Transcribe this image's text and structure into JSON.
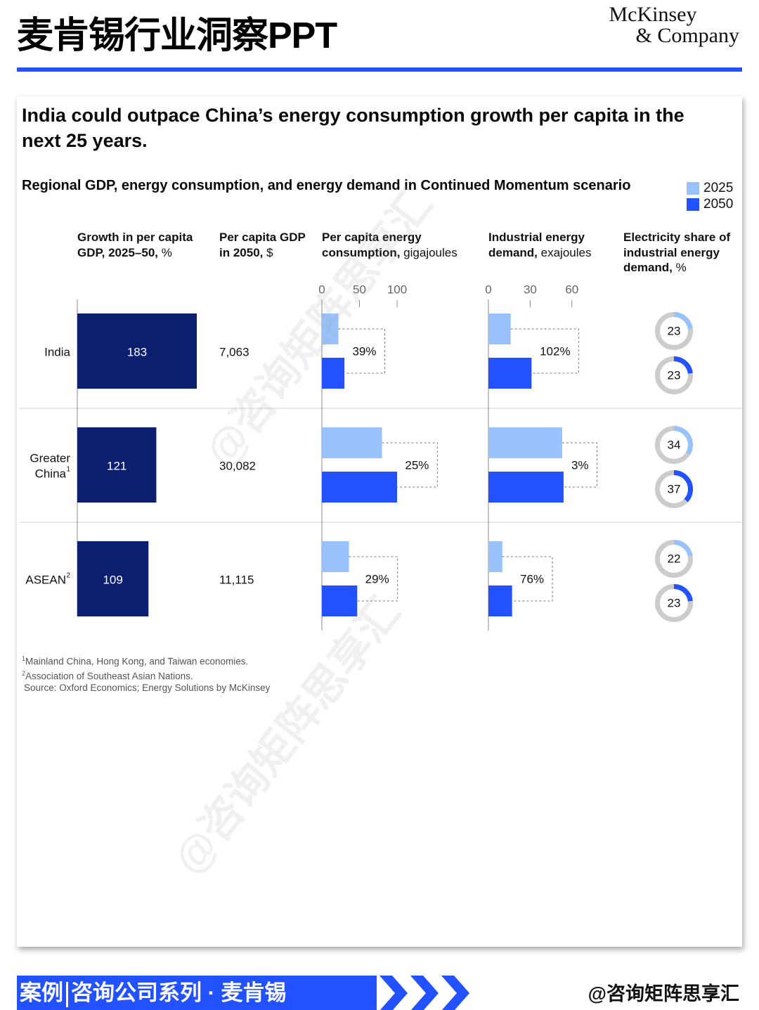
{
  "header": {
    "title": "麦肯锡行业洞察PPT",
    "logo_line1": "McKinsey",
    "logo_line2": "& Company"
  },
  "headline": "India could outpace China’s energy consumption growth per capita in the next 25 years.",
  "subtitle": "Regional GDP, energy consumption, and energy demand in Continued Momentum scenario",
  "legend": {
    "y2025": "2025",
    "y2050": "2050"
  },
  "colors": {
    "navy": "#0c1e6e",
    "light_blue": "#99c2fc",
    "blue": "#2251ff",
    "grey": "#cccccc"
  },
  "columns": {
    "gdp_growth": {
      "bold": "Growth in per capita GDP, 2025–50,",
      "unit": " %"
    },
    "gdp_2050": {
      "bold": "Per capita GDP in 2050,",
      "unit": " $"
    },
    "energy_pc": {
      "bold": "Per capita energy consumption,",
      "unit": " gigajoules"
    },
    "industrial": {
      "bold": "Industrial energy demand,",
      "unit": " exajoules"
    },
    "electricity": {
      "bold": "Electricity share of industrial energy demand,",
      "unit": " %"
    }
  },
  "chart_data": {
    "type": "bar",
    "title": "Regional GDP, energy consumption, and energy demand in Continued Momentum scenario",
    "categories": [
      "India",
      "Greater China",
      "ASEAN"
    ],
    "category_labels": [
      {
        "text": "India",
        "sup": ""
      },
      {
        "text": "Greater China",
        "sup": "1"
      },
      {
        "text": "ASEAN",
        "sup": "2"
      }
    ],
    "gdp_growth_pct": [
      183,
      121,
      109
    ],
    "gdp_per_capita_2050_usd": [
      "7,063",
      "30,082",
      "11,115"
    ],
    "energy_per_capita_gj": {
      "ticks": [
        0,
        50,
        100
      ],
      "series": [
        {
          "name": "2025",
          "values": [
            22,
            80,
            36
          ]
        },
        {
          "name": "2050",
          "values": [
            30,
            100,
            47
          ]
        }
      ],
      "growth_labels": [
        "39%",
        "25%",
        "29%"
      ]
    },
    "industrial_energy_ej": {
      "ticks": [
        0,
        30,
        60
      ],
      "series": [
        {
          "name": "2025",
          "values": [
            16,
            53,
            10
          ]
        },
        {
          "name": "2050",
          "values": [
            31,
            54,
            17
          ]
        }
      ],
      "growth_labels": [
        "102%",
        "3%",
        "76%"
      ]
    },
    "electricity_share_pct": {
      "series": [
        {
          "name": "2025",
          "values": [
            23,
            34,
            22
          ]
        },
        {
          "name": "2050",
          "values": [
            23,
            37,
            23
          ]
        }
      ]
    }
  },
  "footnotes": {
    "f1_sup": "1",
    "f1": "Mainland China, Hong Kong, and Taiwan economies.",
    "f2_sup": "2",
    "f2": "Association of Southeast Asian Nations.",
    "source": "Source: Oxford Economics; Energy Solutions by McKinsey"
  },
  "watermark": "@咨询矩阵思享汇",
  "footer": {
    "part1": "案例",
    "part2": "咨询公司系列 · 麦肯锡",
    "handle": "@咨询矩阵思享汇"
  }
}
